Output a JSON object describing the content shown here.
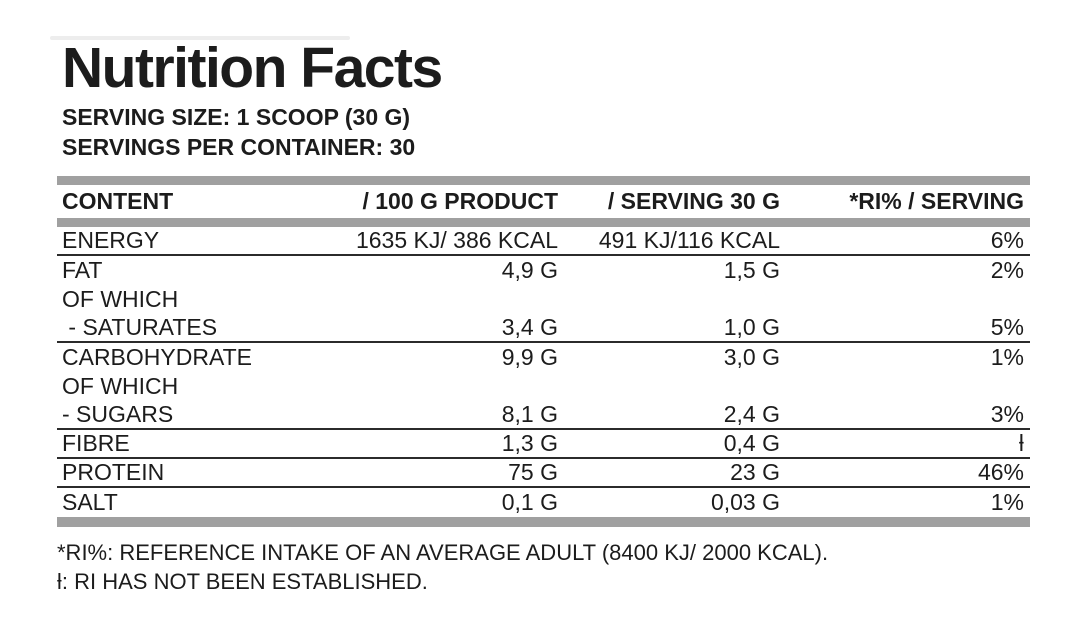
{
  "title": "Nutrition Facts",
  "serving": {
    "size_line": "SERVING SIZE: 1 SCOOP (30 G)",
    "per_container_line": "SERVINGS PER CONTAINER: 30"
  },
  "table": {
    "headers": {
      "content": "CONTENT",
      "per_100g": "/ 100 G PRODUCT",
      "per_serving": "/ SERVING 30 G",
      "ri": "*RI% / SERVING"
    },
    "rows": [
      {
        "name": "ENERGY",
        "per_100g": "1635 KJ/ 386 KCAL",
        "per_serving": "491 KJ/116 KCAL",
        "ri": "6%"
      },
      {
        "name": "FAT",
        "per_100g": "4,9 G",
        "per_serving": "1,5 G",
        "ri": "2%"
      },
      {
        "name": "OF WHICH",
        "per_100g": "",
        "per_serving": "",
        "ri": ""
      },
      {
        "name": " - SATURATES",
        "per_100g": "3,4 G",
        "per_serving": "1,0 G",
        "ri": "5%"
      },
      {
        "name": "CARBOHYDRATE",
        "per_100g": "9,9 G",
        "per_serving": "3,0 G",
        "ri": "1%"
      },
      {
        "name": "OF WHICH",
        "per_100g": "",
        "per_serving": "",
        "ri": ""
      },
      {
        "name": "- SUGARS",
        "per_100g": "8,1 G",
        "per_serving": "2,4 G",
        "ri": "3%"
      },
      {
        "name": "FIBRE",
        "per_100g": "1,3 G",
        "per_serving": "0,4 G",
        "ri": "ƚ"
      },
      {
        "name": "PROTEIN",
        "per_100g": "75 G",
        "per_serving": "23 G",
        "ri": "46%"
      },
      {
        "name": "SALT",
        "per_100g": "0,1 G",
        "per_serving": "0,03 G",
        "ri": "1%"
      }
    ]
  },
  "footnotes": {
    "ri_note": "*RI%: REFERENCE INTAKE OF AN AVERAGE ADULT (8400 KJ/ 2000 KCAL).",
    "not_established_note": "ƚ: RI HAS NOT BEEN ESTABLISHED."
  },
  "colors": {
    "text": "#1c1c1c",
    "separator_bar": "#a0a0a0",
    "rule_line": "#2b2b2b",
    "background": "#ffffff"
  }
}
